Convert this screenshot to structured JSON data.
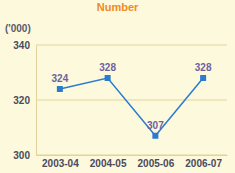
{
  "chart_data": {
    "type": "line",
    "title": "Number",
    "y_label": "('000)",
    "categories": [
      "2003-04",
      "2004-05",
      "2005-06",
      "2006-07"
    ],
    "values": [
      324,
      328,
      307,
      328
    ],
    "color": "#2b7bcf",
    "ylim": [
      300,
      340
    ],
    "yticks": [
      300,
      320,
      340
    ],
    "grid": true,
    "data_labels": true,
    "marker": "square"
  }
}
